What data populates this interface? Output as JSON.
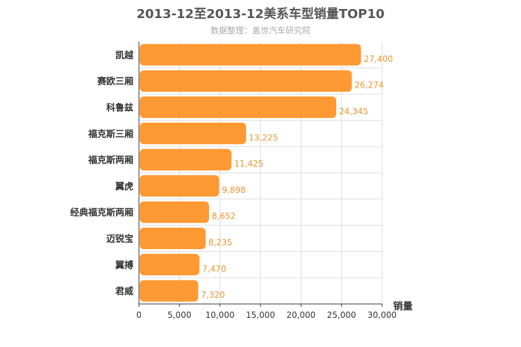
{
  "chart_data": {
    "type": "bar",
    "orientation": "horizontal",
    "title": "2013-12至2013-12美系车型销量TOP10",
    "subtitle": "数据整理：盖世汽车研究院",
    "xlabel": "销量",
    "ylabel": "",
    "xlim": [
      0,
      30000
    ],
    "xticks": [
      0,
      5000,
      10000,
      15000,
      20000,
      25000,
      30000
    ],
    "xtick_labels": [
      "0",
      "5,000",
      "10,000",
      "15,000",
      "20,000",
      "25,000",
      "30,000"
    ],
    "grid": true,
    "legend": "none",
    "categories": [
      "凯越",
      "赛欧三厢",
      "科鲁兹",
      "福克斯三厢",
      "福克斯两厢",
      "翼虎",
      "经典福克斯两厢",
      "迈锐宝",
      "翼搏",
      "君威"
    ],
    "values": [
      27400,
      26274,
      24345,
      13225,
      11425,
      9898,
      8652,
      8235,
      7470,
      7320
    ],
    "value_labels": [
      "27,400",
      "26,274",
      "24,345",
      "13,225",
      "11,425",
      "9,898",
      "8,652",
      "8,235",
      "7,470",
      "7,320"
    ],
    "colors": {
      "bar": "#ff9933",
      "label": "#e8962e",
      "grid": "#dddddd",
      "axis": "#333333",
      "text": "#333333"
    }
  }
}
